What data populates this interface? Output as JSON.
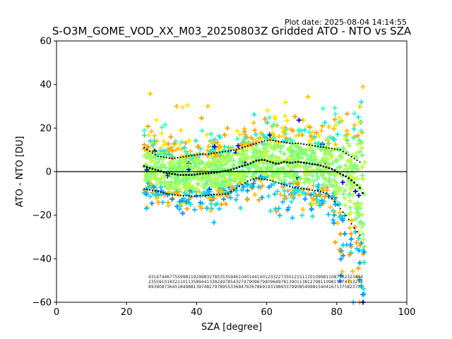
{
  "plot_date": "Plot date: 2025-08-04 14:14:55",
  "chart_data": {
    "type": "scatter",
    "title": "S-O3M_GOME_VOD_XX_M03_20250803Z Gridded ATO - NTO vs SZA",
    "xlabel": "SZA [degree]",
    "ylabel": "ATO - NTO [DU]",
    "xlim": [
      0,
      100
    ],
    "ylim": [
      -60,
      60
    ],
    "x_ticks": [
      0,
      20,
      40,
      60,
      80,
      100
    ],
    "x_tick_labels": [
      "0",
      "20",
      "40",
      "60",
      "80",
      "100"
    ],
    "y_ticks": [
      -60,
      -40,
      -20,
      0,
      20,
      40,
      60
    ],
    "y_tick_labels": [
      "−60",
      "−40",
      "−20",
      "0",
      "20",
      "40",
      "60"
    ],
    "grid": false,
    "marker": "+",
    "zero_line": 0,
    "point_colors": [
      "#00c8ff",
      "#1ee6d2",
      "#33ffc0",
      "#7cff79",
      "#b4ff4a",
      "#ffe600",
      "#ffc400",
      "#ff9f00",
      "#0096ff",
      "#0000e0"
    ],
    "scatter_x_range": [
      25,
      88
    ],
    "series": [
      {
        "name": "",
        "style": "median",
        "x": [
          25,
          27,
          29,
          31,
          33,
          35,
          37,
          39,
          41,
          43,
          45,
          47,
          49,
          51,
          53,
          55,
          57,
          59,
          61,
          63,
          65,
          67,
          69,
          71,
          73,
          75,
          77,
          79,
          81,
          83,
          85,
          87,
          88
        ],
        "y": [
          2.5,
          1.5,
          0.5,
          -0.5,
          -1.0,
          -1.5,
          -1.5,
          -1.5,
          -1.0,
          -0.8,
          -0.5,
          0.0,
          0.5,
          1.5,
          2.5,
          3.5,
          5.0,
          5.5,
          4.5,
          3.5,
          4.5,
          4.0,
          4.5,
          4.0,
          3.5,
          3.0,
          2.0,
          1.0,
          -1.0,
          -2.5,
          -5.0,
          -8.0,
          -12.5
        ]
      },
      {
        "name": "",
        "style": "upper-spread",
        "x": [
          25,
          27,
          29,
          31,
          33,
          35,
          37,
          39,
          41,
          43,
          45,
          47,
          49,
          51,
          53,
          55,
          57,
          59,
          61,
          63,
          65,
          67,
          69,
          71,
          73,
          75,
          77,
          79,
          81,
          83,
          85,
          87
        ],
        "y": [
          11,
          9,
          7,
          6.5,
          6,
          6.5,
          7,
          7.5,
          8,
          8,
          8.5,
          9,
          9.5,
          10,
          11,
          12,
          13,
          14,
          14.5,
          14,
          13.5,
          13,
          13,
          12.5,
          12,
          11.5,
          11,
          10.5,
          10,
          8,
          6,
          4
        ]
      },
      {
        "name": "",
        "style": "lower-spread",
        "x": [
          25,
          27,
          29,
          31,
          33,
          35,
          37,
          39,
          41,
          43,
          45,
          47,
          49,
          51,
          53,
          55,
          57,
          59,
          61,
          63,
          65,
          67,
          69,
          71,
          73,
          75,
          77,
          79,
          81,
          83,
          85,
          87
        ],
        "y": [
          -8,
          -8.5,
          -9,
          -10,
          -10.5,
          -11,
          -11,
          -11.5,
          -11,
          -11,
          -10.5,
          -10.5,
          -10,
          -8,
          -6,
          -4,
          -3,
          -3.5,
          -4,
          -5,
          -6,
          -7,
          -7.5,
          -8,
          -8.5,
          -9,
          -10,
          -13,
          -17,
          -21,
          -26,
          -30
        ]
      }
    ],
    "count_rows": [
      "431474467755998119299832785353594610401441401233227350121511101099811087762323444",
      "235591018321101135894413382497854327479096794096497813901138127981109813674713254",
      "893908736451849881397482797895533684783678691931989337990854998154041671375823701"
    ]
  }
}
